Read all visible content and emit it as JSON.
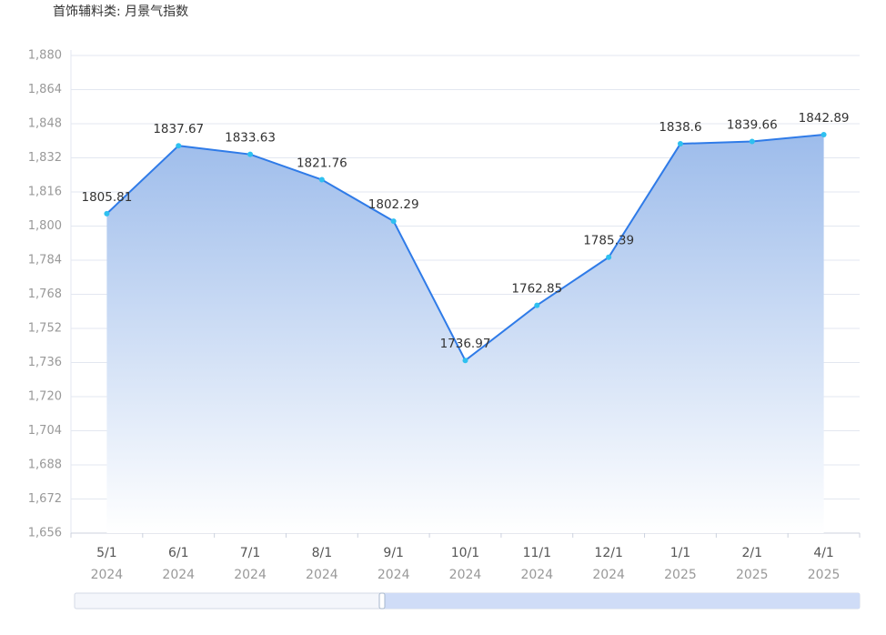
{
  "chart_data": {
    "type": "area",
    "title": "首饰辅料类: 月景气指数",
    "categories": [
      "5/1",
      "6/1",
      "7/1",
      "8/1",
      "9/1",
      "10/1",
      "11/1",
      "12/1",
      "1/1",
      "2/1",
      "4/1"
    ],
    "category_years": [
      "2024",
      "2024",
      "2024",
      "2024",
      "2024",
      "2024",
      "2024",
      "2024",
      "2025",
      "2025",
      "2025"
    ],
    "series": [
      {
        "name": "月景气指数",
        "color": "#2f7be8",
        "values": [
          1805.81,
          1837.67,
          1833.63,
          1821.76,
          1802.29,
          1736.97,
          1762.85,
          1785.39,
          1838.6,
          1839.66,
          1842.89
        ]
      }
    ],
    "ylim": [
      1656,
      1880
    ],
    "yticks": [
      {
        "value": 1656,
        "label": "1,656"
      },
      {
        "value": 1672,
        "label": "1,672"
      },
      {
        "value": 1688,
        "label": "1,688"
      },
      {
        "value": 1704,
        "label": "1,704"
      },
      {
        "value": 1720,
        "label": "1,720"
      },
      {
        "value": 1736,
        "label": "1,736"
      },
      {
        "value": 1752,
        "label": "1,752"
      },
      {
        "value": 1768,
        "label": "1,768"
      },
      {
        "value": 1784,
        "label": "1,784"
      },
      {
        "value": 1800,
        "label": "1,800"
      },
      {
        "value": 1816,
        "label": "1,816"
      },
      {
        "value": 1832,
        "label": "1,832"
      },
      {
        "value": 1848,
        "label": "1,848"
      },
      {
        "value": 1864,
        "label": "1,864"
      },
      {
        "value": 1880,
        "label": "1,880"
      }
    ],
    "grid": true
  }
}
